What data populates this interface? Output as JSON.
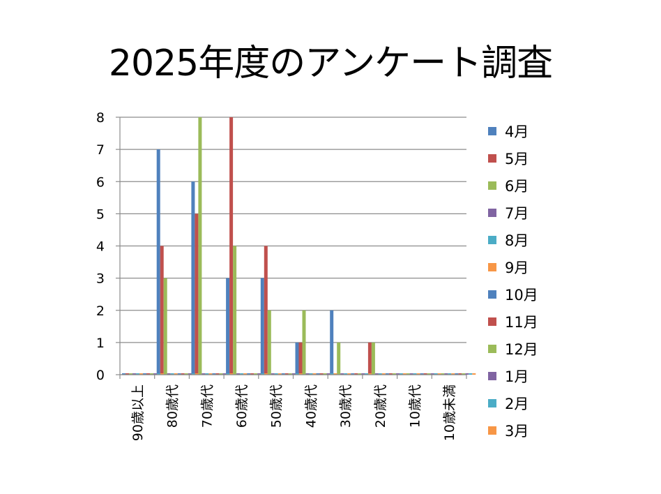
{
  "chart_data": {
    "type": "bar",
    "title": "2025年度のアンケート調査",
    "xlabel": "",
    "ylabel": "",
    "ylim": [
      0,
      8
    ],
    "yticks": [
      0,
      1,
      2,
      3,
      4,
      5,
      6,
      7,
      8
    ],
    "grid": true,
    "legend_position": "right",
    "categories": [
      "90歳以上",
      "80歳代",
      "70歳代",
      "60歳代",
      "50歳代",
      "40歳代",
      "30歳代",
      "20歳代",
      "10歳代",
      "10歳未満"
    ],
    "series": [
      {
        "name": "4月",
        "color": "#4F81BD",
        "values": [
          0,
          7,
          6,
          3,
          3,
          1,
          2,
          0,
          0,
          0
        ]
      },
      {
        "name": "5月",
        "color": "#C0504D",
        "values": [
          0,
          4,
          5,
          8,
          4,
          1,
          0,
          1,
          0,
          0
        ]
      },
      {
        "name": "6月",
        "color": "#9BBB59",
        "values": [
          0,
          3,
          8,
          4,
          2,
          2,
          1,
          1,
          0,
          0
        ]
      },
      {
        "name": "7月",
        "color": "#8064A2",
        "values": [
          0,
          0,
          0,
          0,
          0,
          0,
          0,
          0,
          0,
          0
        ]
      },
      {
        "name": "8月",
        "color": "#4BACC6",
        "values": [
          0,
          0,
          0,
          0,
          0,
          0,
          0,
          0,
          0,
          0
        ]
      },
      {
        "name": "9月",
        "color": "#F79646",
        "values": [
          0,
          0,
          0,
          0,
          0,
          0,
          0,
          0,
          0,
          0
        ]
      },
      {
        "name": "10月",
        "color": "#4F81BD",
        "values": [
          0,
          0,
          0,
          0,
          0,
          0,
          0,
          0,
          0,
          0
        ]
      },
      {
        "name": "11月",
        "color": "#C0504D",
        "values": [
          0,
          0,
          0,
          0,
          0,
          0,
          0,
          0,
          0,
          0
        ]
      },
      {
        "name": "12月",
        "color": "#9BBB59",
        "values": [
          0,
          0,
          0,
          0,
          0,
          0,
          0,
          0,
          0,
          0
        ]
      },
      {
        "name": "1月",
        "color": "#8064A2",
        "values": [
          0,
          0,
          0,
          0,
          0,
          0,
          0,
          0,
          0,
          0
        ]
      },
      {
        "name": "2月",
        "color": "#4BACC6",
        "values": [
          0,
          0,
          0,
          0,
          0,
          0,
          0,
          0,
          0,
          0
        ]
      },
      {
        "name": "3月",
        "color": "#F79646",
        "values": [
          0,
          0,
          0,
          0,
          0,
          0,
          0,
          0,
          0,
          0
        ]
      }
    ]
  }
}
